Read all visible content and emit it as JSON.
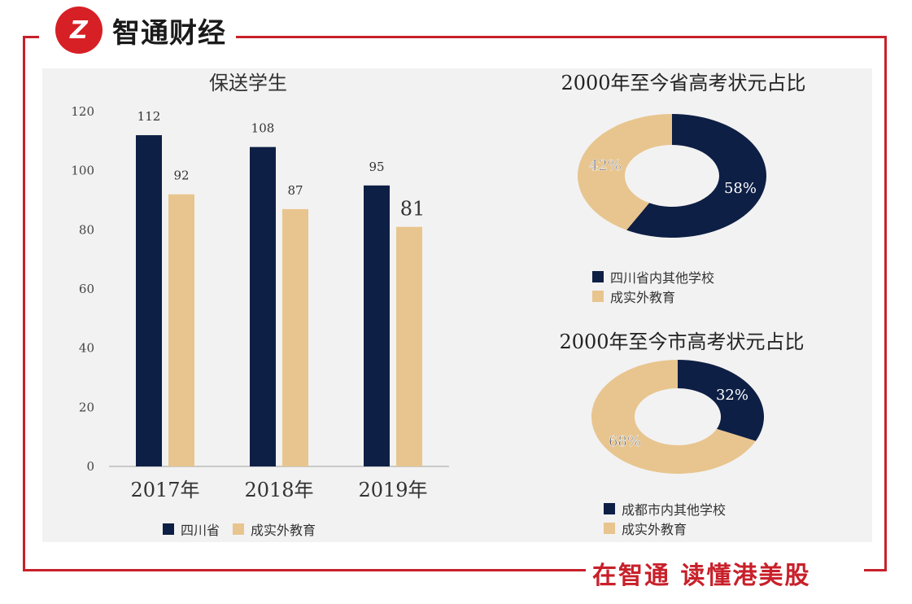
{
  "header": {
    "logo_mark": "Z",
    "brand": "智通财经"
  },
  "footer": {
    "slogan": "在智通  读懂港美股"
  },
  "colors": {
    "navy": "#0e1f45",
    "tan": "#e8c58e",
    "red": "#c8202a"
  },
  "chart_data": [
    {
      "type": "bar",
      "title": "保送学生",
      "categories": [
        "2017年",
        "2018年",
        "2019年"
      ],
      "series": [
        {
          "name": "四川省",
          "values": [
            112,
            108,
            95
          ]
        },
        {
          "name": "成实外教育",
          "values": [
            92,
            87,
            81
          ]
        }
      ],
      "ylim": [
        0,
        120
      ],
      "yticks": [
        "0",
        "20",
        "40",
        "60",
        "80",
        "100",
        "120"
      ],
      "value_labels": [
        [
          "112",
          "108",
          "95"
        ],
        [
          "92",
          "87",
          "81"
        ]
      ]
    },
    {
      "type": "pie",
      "title": "2000年至今省高考状元占比",
      "labels": [
        "四川省内其他学校",
        "成实外教育"
      ],
      "values": [
        58,
        42
      ],
      "value_labels": [
        "58%",
        "42%"
      ]
    },
    {
      "type": "pie",
      "title": "2000年至今市高考状元占比",
      "labels": [
        "成都市内其他学校",
        "成实外教育"
      ],
      "values": [
        32,
        68
      ],
      "value_labels": [
        "32%",
        "68%"
      ]
    }
  ]
}
